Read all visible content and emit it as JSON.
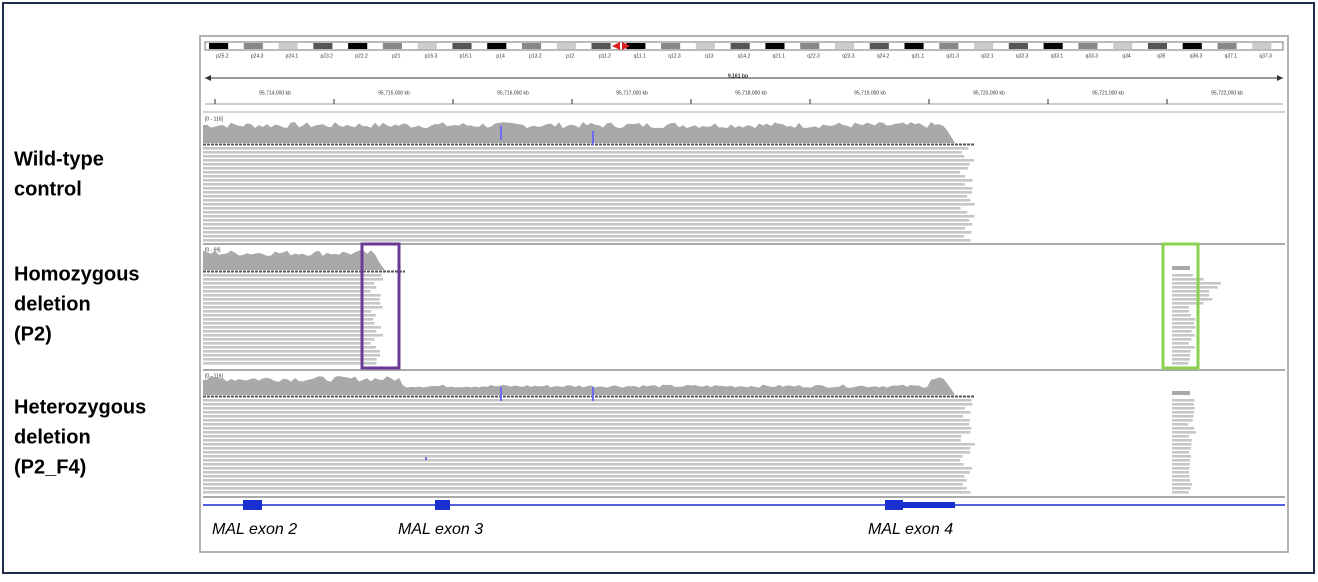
{
  "sample_labels": [
    {
      "lines": [
        "Wild-type",
        "control"
      ]
    },
    {
      "lines": [
        "Homozygous",
        "deletion",
        "(P2)"
      ]
    },
    {
      "lines": [
        "Heterozygous",
        "deletion",
        "(P2_F4)"
      ]
    }
  ],
  "ideogram": {
    "bands": [
      "p25.2",
      "p24.3",
      "p24.1",
      "p23.2",
      "p22.2",
      "p21",
      "p16.3",
      "p16.1",
      "p14",
      "p13.2",
      "p12",
      "p11.2",
      "q11.1",
      "q12.3",
      "q13",
      "q14.2",
      "q21.1",
      "q22.3",
      "q23.3",
      "q24.2",
      "q31.1",
      "q31.3",
      "q32.1",
      "q32.3",
      "q33.1",
      "q33.3",
      "q34",
      "q35",
      "q36.3",
      "q37.1",
      "q37.3"
    ]
  },
  "ruler": {
    "span": "9,161 bp",
    "coordinates": [
      "95,714,000 kb",
      "95,715,000 kb",
      "95,716,000 kb",
      "95,717,000 kb",
      "95,718,000 kb",
      "95,719,000 kb",
      "95,720,000 kb",
      "95,721,000 kb",
      "95,722,000 kb"
    ]
  },
  "tracks": [
    {
      "range": "[0 - 116]"
    },
    {
      "range": "[0 - 69]"
    },
    {
      "range": "[0 - 116]"
    }
  ],
  "gene": {
    "exons": [
      "MAL exon 2",
      "MAL exon 3",
      "MAL exon 4"
    ]
  }
}
